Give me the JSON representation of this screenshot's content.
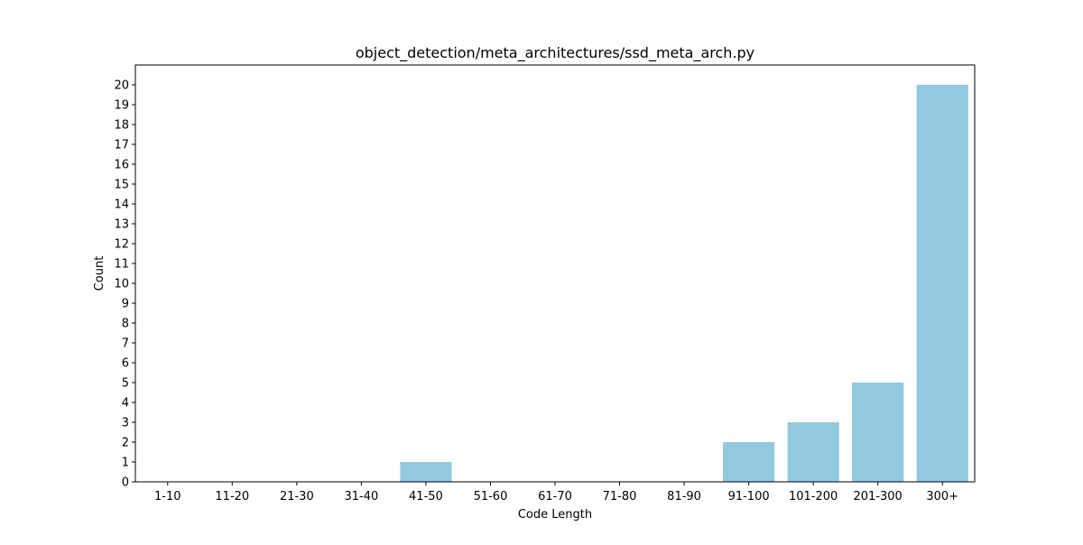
{
  "chart_data": {
    "type": "bar",
    "title": "object_detection/meta_architectures/ssd_meta_arch.py",
    "xlabel": "Code Length",
    "ylabel": "Count",
    "categories": [
      "1-10",
      "11-20",
      "21-30",
      "31-40",
      "41-50",
      "51-60",
      "61-70",
      "71-80",
      "81-90",
      "91-100",
      "101-200",
      "201-300",
      "300+"
    ],
    "values": [
      0,
      0,
      0,
      0,
      1,
      0,
      0,
      0,
      0,
      2,
      3,
      5,
      20
    ],
    "ylim": [
      0,
      21
    ],
    "yticks": [
      0,
      1,
      2,
      3,
      4,
      5,
      6,
      7,
      8,
      9,
      10,
      11,
      12,
      13,
      14,
      15,
      16,
      17,
      18,
      19,
      20
    ],
    "bar_color": "#92c9df",
    "grid": false,
    "legend": "none"
  }
}
